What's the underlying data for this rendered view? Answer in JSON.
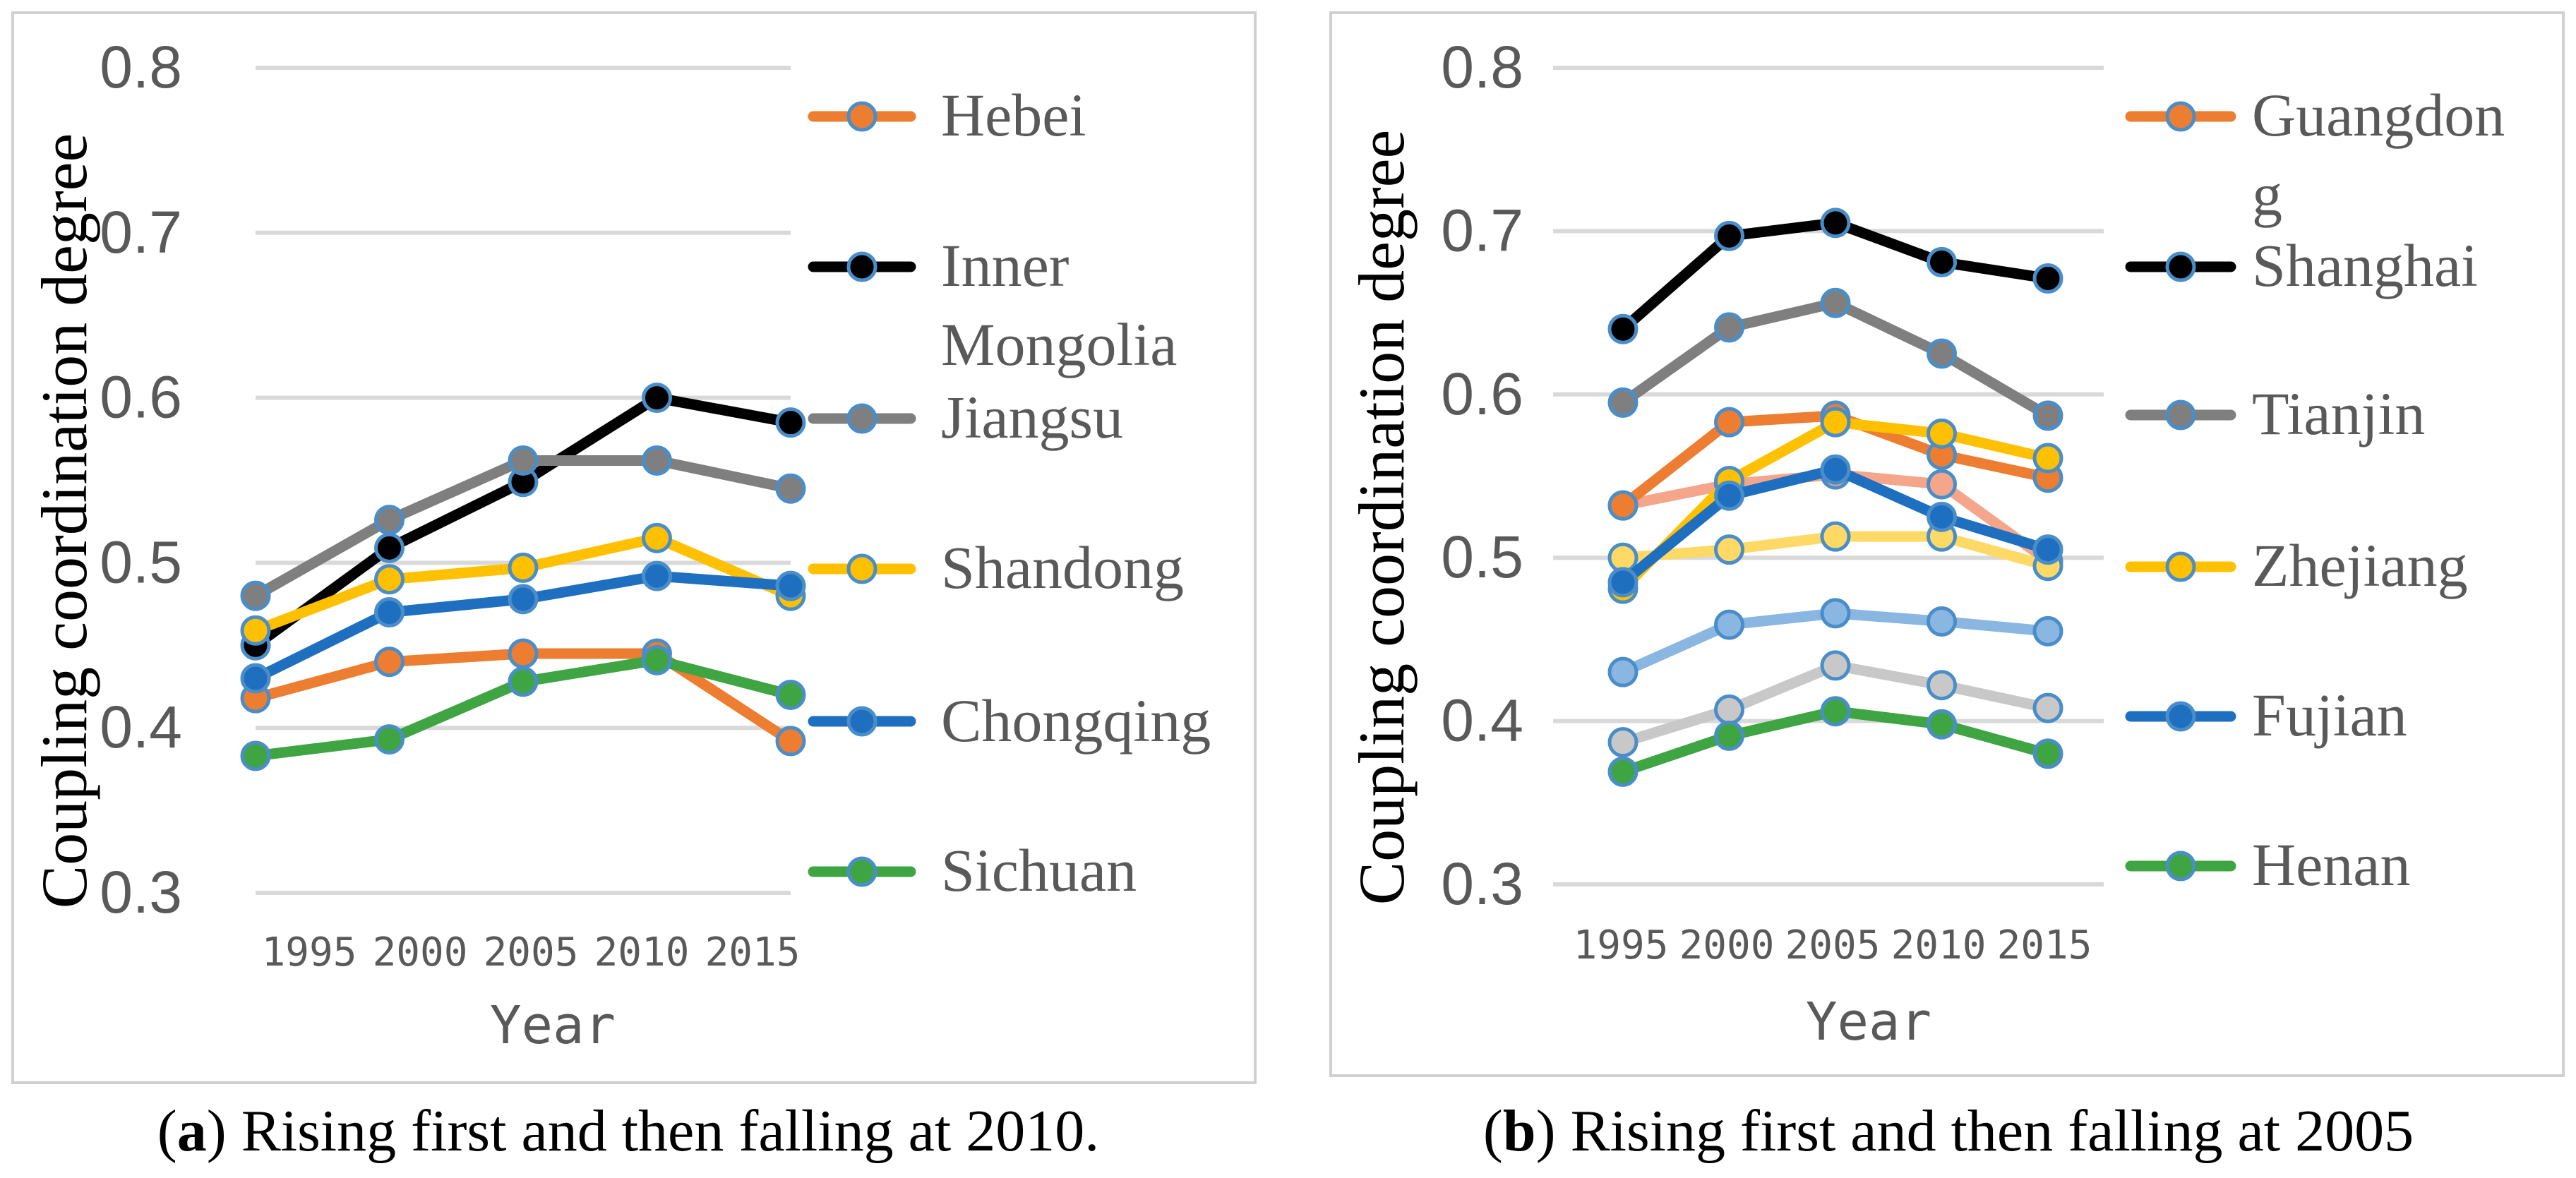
{
  "chart_data": [
    {
      "type": "line",
      "panel": "a",
      "caption_label": "a",
      "caption_text": "Rising first and then falling at 2010.",
      "xlabel": "Year",
      "ylabel": "Coupling coordination degree",
      "x": [
        "1995",
        "2000",
        "2005",
        "2010",
        "2015"
      ],
      "ylim": [
        0.3,
        0.8
      ],
      "yticks": [
        "0.3",
        "0.4",
        "0.5",
        "0.6",
        "0.7",
        "0.8"
      ],
      "grid": true,
      "legend_position": "right",
      "series": [
        {
          "name": "Hebei",
          "color": "#ED7D31",
          "values": [
            0.418,
            0.44,
            0.445,
            0.445,
            0.392
          ]
        },
        {
          "name": "Inner Mongolia",
          "color": "#000000",
          "values": [
            0.45,
            0.509,
            0.549,
            0.6,
            0.585
          ]
        },
        {
          "name": "Jiangsu",
          "color": "#7F7F7F",
          "values": [
            0.48,
            0.526,
            0.562,
            0.562,
            0.545
          ]
        },
        {
          "name": "Shandong",
          "color": "#FFC000",
          "values": [
            0.459,
            0.49,
            0.497,
            0.515,
            0.48
          ]
        },
        {
          "name": "Chongqing",
          "color": "#1F6FC0",
          "values": [
            0.43,
            0.47,
            0.478,
            0.492,
            0.486
          ]
        },
        {
          "name": "Sichuan",
          "color": "#3FA543",
          "values": [
            0.383,
            0.393,
            0.428,
            0.441,
            0.42
          ]
        }
      ]
    },
    {
      "type": "line",
      "panel": "b",
      "caption_label": "b",
      "caption_text": "Rising first and then falling at 2005",
      "xlabel": "Year",
      "ylabel": "Coupling coordination degree",
      "x": [
        "1995",
        "2000",
        "2005",
        "2010",
        "2015"
      ],
      "ylim": [
        0.3,
        0.8
      ],
      "yticks": [
        "0.3",
        "0.4",
        "0.5",
        "0.6",
        "0.7",
        "0.8"
      ],
      "grid": true,
      "legend_position": "right",
      "series": [
        {
          "name": "Guangdong",
          "color": "#ED7D31",
          "values": [
            0.532,
            0.583,
            0.587,
            0.563,
            0.549
          ]
        },
        {
          "name": "Shanghai",
          "color": "#000000",
          "values": [
            0.64,
            0.697,
            0.705,
            0.681,
            0.671
          ]
        },
        {
          "name": "Tianjin",
          "color": "#7F7F7F",
          "values": [
            0.595,
            0.641,
            0.656,
            0.625,
            0.587
          ]
        },
        {
          "name": "Zhejiang",
          "color": "#FFC000",
          "values": [
            0.481,
            0.547,
            0.583,
            0.576,
            0.561
          ]
        },
        {
          "name": "Fujian",
          "color": "#1F6FC0",
          "values": [
            0.485,
            0.538,
            0.554,
            0.525,
            0.505
          ]
        },
        {
          "name": "Henan",
          "color": "#3FA543",
          "values": [
            0.369,
            0.391,
            0.406,
            0.398,
            0.38
          ]
        },
        {
          "name": "",
          "color": "#F4A58A",
          "values": [
            0.532,
            0.545,
            0.551,
            0.545,
            0.498
          ]
        },
        {
          "name": "",
          "color": "#FFD966",
          "values": [
            0.5,
            0.505,
            0.513,
            0.513,
            0.495
          ]
        },
        {
          "name": "",
          "color": "#8AB6E2",
          "values": [
            0.43,
            0.459,
            0.466,
            0.461,
            0.455
          ]
        },
        {
          "name": "",
          "color": "#C8C8C8",
          "values": [
            0.387,
            0.407,
            0.434,
            0.422,
            0.408
          ]
        }
      ]
    }
  ]
}
